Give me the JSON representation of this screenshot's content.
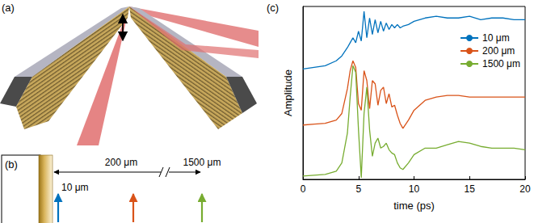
{
  "panel_labels": [
    "(a)",
    "(b)",
    "(c)"
  ],
  "diagram_b": {
    "markers": [
      {
        "label": "10 μm"
      },
      {
        "label": "200 μm"
      },
      {
        "label": "1500 μm"
      }
    ]
  },
  "chart_data": {
    "type": "line",
    "x_label": "time (ps)",
    "y_label": "Amplitude",
    "x": [
      0,
      1,
      2,
      3,
      3.5,
      4,
      4.25,
      4.5,
      4.75,
      5,
      5.25,
      5.5,
      5.75,
      6,
      6.25,
      6.5,
      6.75,
      7,
      7.25,
      7.5,
      7.75,
      8,
      8.25,
      8.5,
      8.75,
      9,
      9.5,
      10,
      11,
      12,
      13,
      14,
      15,
      16,
      17,
      18,
      19,
      20
    ],
    "series": [
      {
        "name": "10 μm",
        "color": "#0072bd",
        "values": [
          6.7,
          6.8,
          6.9,
          7.2,
          7.5,
          8.0,
          8.3,
          8.6,
          8.3,
          9.0,
          8.4,
          10.2,
          8.6,
          9.8,
          8.8,
          9.7,
          8.9,
          9.6,
          9.0,
          9.5,
          9.1,
          9.4,
          9.2,
          9.4,
          9.2,
          9.3,
          9.4,
          9.6,
          9.8,
          9.9,
          9.8,
          9.8,
          9.9,
          9.7,
          9.8,
          9.8,
          9.7,
          9.7
        ]
      },
      {
        "name": "200 μm",
        "color": "#d95319",
        "values": [
          3.3,
          3.35,
          3.4,
          3.6,
          4.0,
          5.5,
          6.6,
          7.2,
          6.8,
          4.6,
          4.2,
          6.6,
          6.0,
          4.3,
          6.0,
          5.8,
          4.5,
          5.4,
          5.6,
          4.6,
          5.2,
          4.4,
          4.5,
          3.9,
          3.4,
          3.1,
          3.6,
          4.2,
          4.8,
          5.0,
          5.1,
          5.1,
          5.0,
          5.0,
          5.0,
          5.0,
          5.0,
          5.0
        ]
      },
      {
        "name": "1500 μm",
        "color": "#77ac30",
        "values": [
          0.2,
          0.25,
          0.3,
          0.5,
          1.0,
          2.8,
          5.0,
          6.9,
          6.5,
          3.0,
          0.1,
          4.0,
          5.6,
          3.0,
          1.4,
          2.2,
          2.5,
          1.9,
          2.0,
          2.2,
          1.8,
          1.6,
          1.5,
          1.0,
          0.7,
          0.6,
          1.0,
          1.5,
          1.9,
          1.9,
          2.1,
          2.3,
          2.2,
          2.0,
          1.9,
          1.9,
          1.9,
          1.8
        ]
      }
    ],
    "xlim": [
      0,
      20
    ],
    "xticks": [
      0,
      5,
      10,
      15,
      20
    ],
    "ylim": [
      0,
      10.5
    ],
    "yticks": [],
    "tick_labels": "x",
    "grid": false,
    "legend": "upper right"
  }
}
